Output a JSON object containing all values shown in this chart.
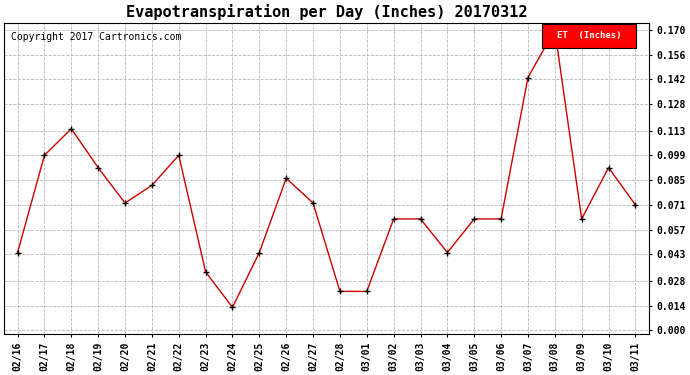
{
  "title": "Evapotranspiration per Day (Inches) 20170312",
  "copyright_text": "Copyright 2017 Cartronics.com",
  "legend_label": "ET  (Inches)",
  "legend_bg": "#ff0000",
  "legend_text_color": "#ffffff",
  "line_color": "#cc0000",
  "marker_color": "#000000",
  "background_color": "#ffffff",
  "grid_color": "#b0b0b0",
  "x_labels": [
    "02/16",
    "02/17",
    "02/18",
    "02/19",
    "02/20",
    "02/21",
    "02/22",
    "02/23",
    "02/24",
    "02/25",
    "02/26",
    "02/27",
    "02/28",
    "03/01",
    "03/02",
    "03/03",
    "03/04",
    "03/05",
    "03/06",
    "03/07",
    "03/08",
    "03/09",
    "03/10",
    "03/11"
  ],
  "y_values": [
    0.044,
    0.099,
    0.114,
    0.092,
    0.072,
    0.082,
    0.099,
    0.033,
    0.013,
    0.044,
    0.086,
    0.072,
    0.022,
    0.022,
    0.063,
    0.063,
    0.044,
    0.063,
    0.063,
    0.143,
    0.17,
    0.063,
    0.092,
    0.071
  ],
  "ylim": [
    -0.002,
    0.174
  ],
  "yticks": [
    0.0,
    0.014,
    0.028,
    0.043,
    0.057,
    0.071,
    0.085,
    0.099,
    0.113,
    0.128,
    0.142,
    0.156,
    0.17
  ],
  "title_fontsize": 11,
  "tick_fontsize": 7,
  "copyright_fontsize": 7
}
